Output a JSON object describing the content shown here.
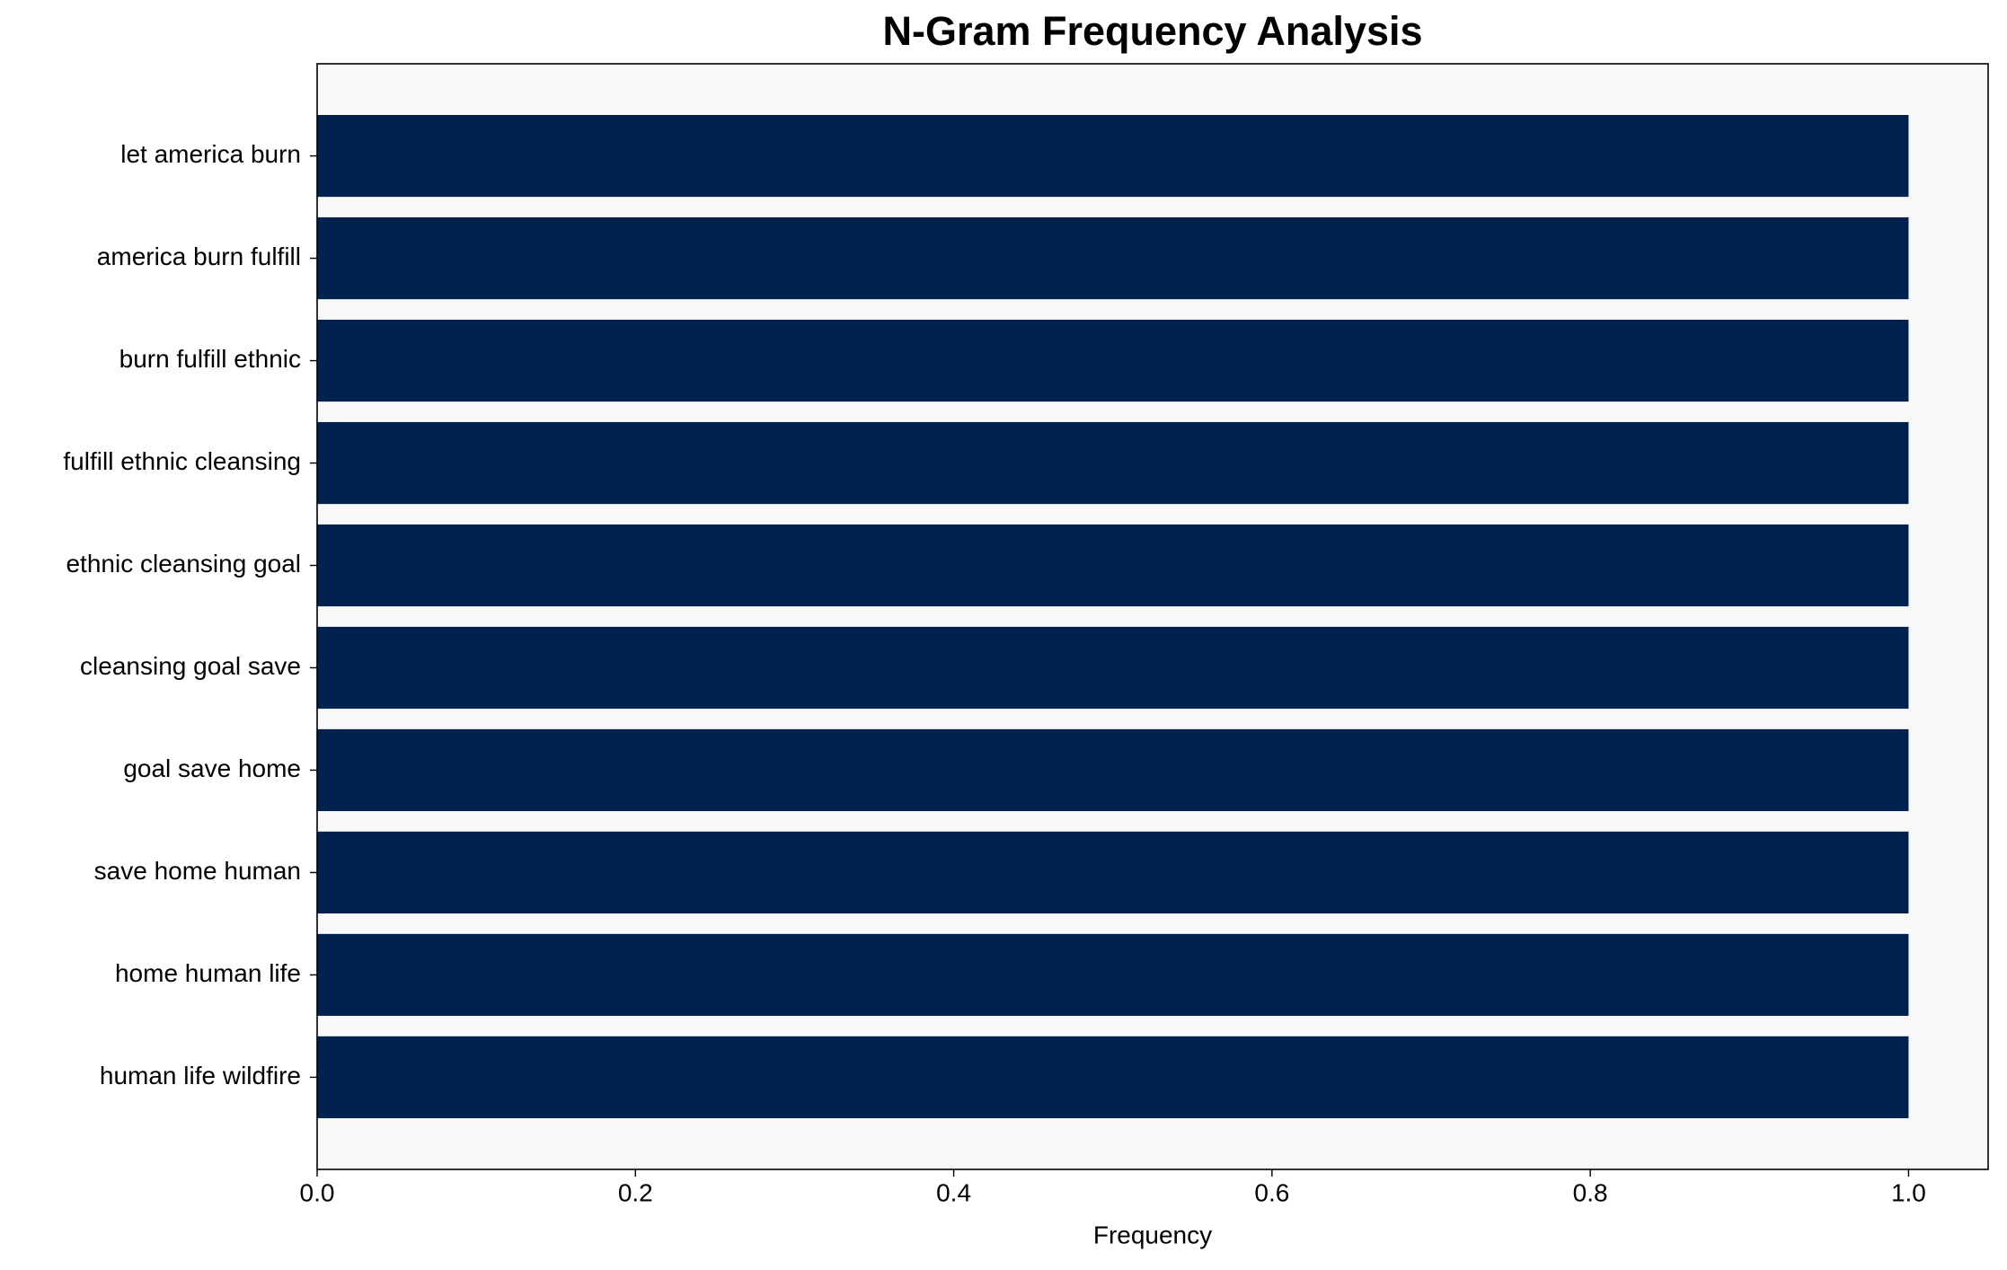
{
  "chart_data": {
    "type": "barh",
    "title": "N-Gram Frequency Analysis",
    "x_label": "Frequency",
    "categories": [
      "let america burn",
      "america burn fulfill",
      "burn fulfill ethnic",
      "fulfill ethnic cleansing",
      "ethnic cleansing goal",
      "cleansing goal save",
      "goal save home",
      "save home human",
      "home human life",
      "human life wildfire"
    ],
    "values": [
      1,
      1,
      1,
      1,
      1,
      1,
      1,
      1,
      1,
      1
    ],
    "color": "#00224e",
    "background": "#f8f8f8",
    "xlim": [
      0,
      1.05
    ],
    "xticks": [
      {
        "value": 0,
        "label": "0.0"
      },
      0.2,
      0.4,
      0.6,
      0.8,
      {
        "value": 1,
        "label": "1.0"
      }
    ]
  }
}
